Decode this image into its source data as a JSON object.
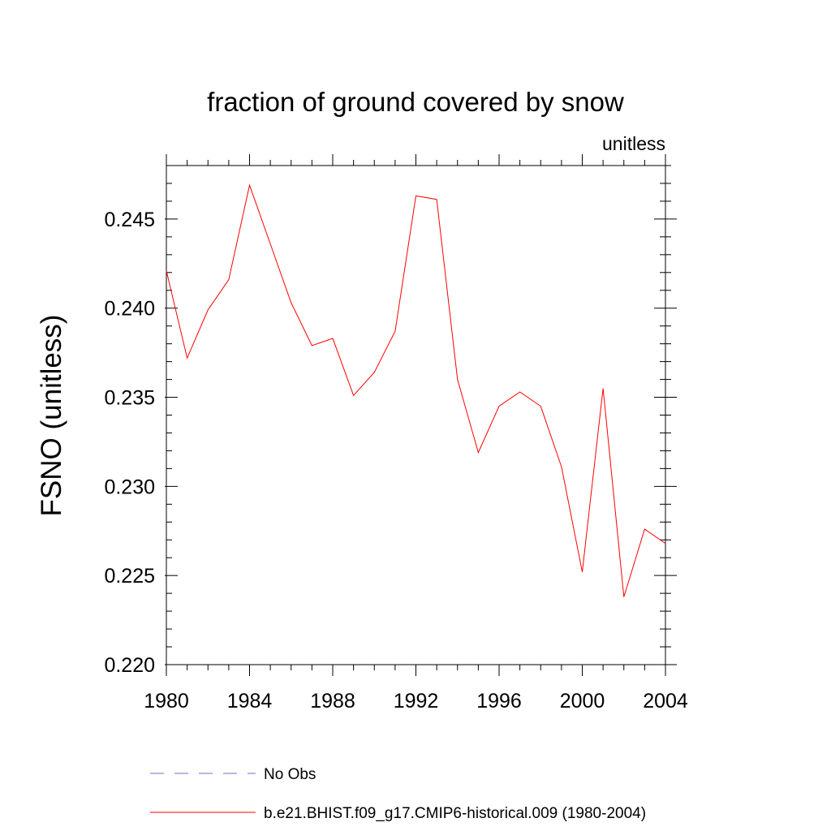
{
  "chart_data": {
    "type": "line",
    "title": "fraction of ground covered by snow",
    "units_label": "unitless",
    "ylabel": "FSNO  (unitless)",
    "xlabel": "",
    "xlim": [
      1980,
      2004
    ],
    "ylim": [
      0.22,
      0.248
    ],
    "x_ticks": [
      1980,
      1984,
      1988,
      1992,
      1996,
      2000,
      2004
    ],
    "x_tick_labels": [
      "1980",
      "1984",
      "1988",
      "1992",
      "1996",
      "2000",
      "2004"
    ],
    "y_ticks": [
      0.22,
      0.225,
      0.23,
      0.235,
      0.24,
      0.245
    ],
    "y_tick_labels": [
      "0.220",
      "0.225",
      "0.230",
      "0.235",
      "0.240",
      "0.245"
    ],
    "grid": false,
    "legend_position": "bottom",
    "series": [
      {
        "name": "b.e21.BHIST.f09_g17.CMIP6-historical.009 (1980-2004)",
        "color": "#ff0000",
        "style": "solid",
        "x": [
          1980,
          1981,
          1982,
          1983,
          1984,
          1985,
          1986,
          1987,
          1988,
          1989,
          1990,
          1991,
          1992,
          1993,
          1994,
          1995,
          1996,
          1997,
          1998,
          1999,
          2000,
          2001,
          2002,
          2003,
          2004
        ],
        "y": [
          0.2421,
          0.2372,
          0.2399,
          0.2416,
          0.2469,
          0.2436,
          0.2403,
          0.2379,
          0.2383,
          0.2351,
          0.2364,
          0.2387,
          0.2463,
          0.2461,
          0.236,
          0.2319,
          0.2345,
          0.2353,
          0.2345,
          0.2311,
          0.2252,
          0.2355,
          0.2238,
          0.2276,
          0.2268
        ]
      }
    ],
    "legend": [
      {
        "label": "No Obs",
        "color": "#7b68c4",
        "style": "dashed"
      },
      {
        "label": "b.e21.BHIST.f09_g17.CMIP6-historical.009 (1980-2004)",
        "color": "#ff0000",
        "style": "solid"
      }
    ]
  }
}
